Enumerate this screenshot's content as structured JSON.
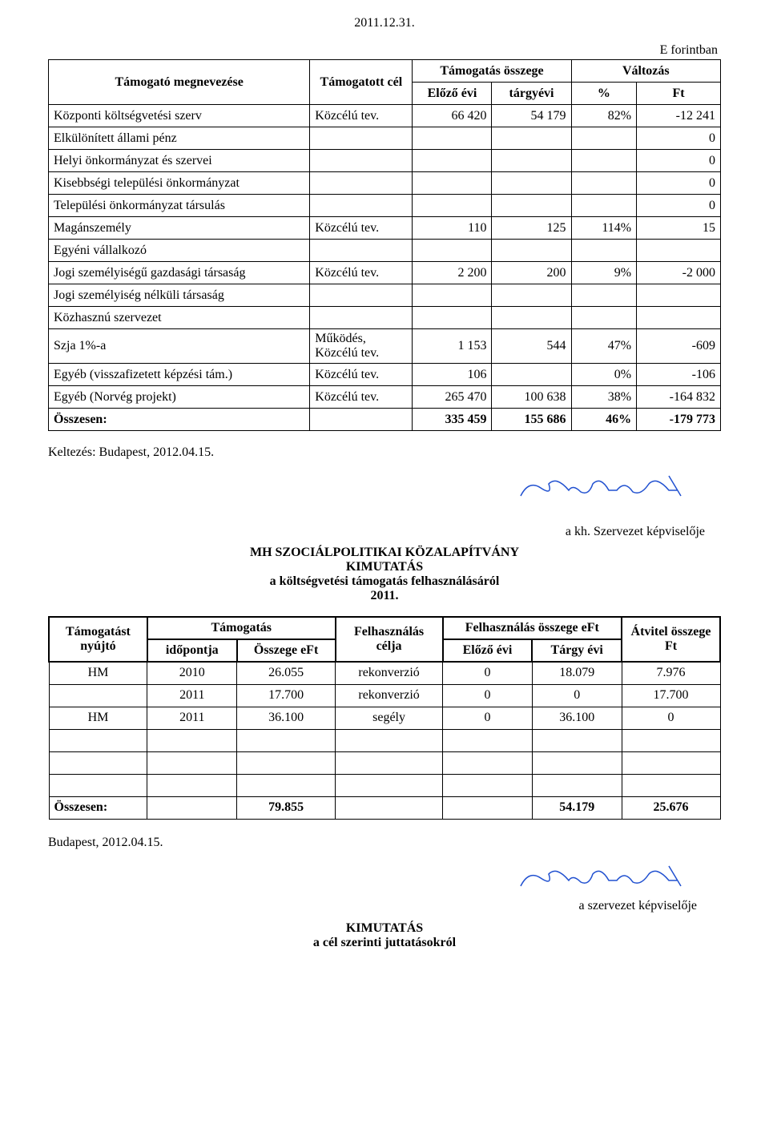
{
  "date_top": "2011.12.31.",
  "currency_label": "E forintban",
  "table1": {
    "headers": {
      "supporter": "Támogató megnevezése",
      "goal": "Támogatott cél",
      "amount": "Támogatás összege",
      "change": "Változás",
      "prev": "Előző évi",
      "curr": "tárgyévi",
      "pct": "%",
      "ft": "Ft"
    },
    "rows": [
      {
        "name": "Központi költségvetési szerv",
        "goal": "Közcélú tev.",
        "prev": "66 420",
        "curr": "54 179",
        "pct": "82%",
        "ft": "-12 241"
      },
      {
        "name": "Elkülönített állami pénz",
        "goal": "",
        "prev": "",
        "curr": "",
        "pct": "",
        "ft": "0"
      },
      {
        "name": "Helyi önkormányzat és szervei",
        "goal": "",
        "prev": "",
        "curr": "",
        "pct": "",
        "ft": "0"
      },
      {
        "name": "Kisebbségi települési önkormányzat",
        "goal": "",
        "prev": "",
        "curr": "",
        "pct": "",
        "ft": "0"
      },
      {
        "name": "Települési önkormányzat társulás",
        "goal": "",
        "prev": "",
        "curr": "",
        "pct": "",
        "ft": "0"
      },
      {
        "name": "Magánszemély",
        "goal": "Közcélú tev.",
        "prev": "110",
        "curr": "125",
        "pct": "114%",
        "ft": "15"
      },
      {
        "name": "Egyéni vállalkozó",
        "goal": "",
        "prev": "",
        "curr": "",
        "pct": "",
        "ft": ""
      },
      {
        "name": "Jogi személyiségű gazdasági társaság",
        "goal": "Közcélú tev.",
        "prev": "2 200",
        "curr": "200",
        "pct": "9%",
        "ft": "-2 000"
      },
      {
        "name": "Jogi személyiség nélküli társaság",
        "goal": "",
        "prev": "",
        "curr": "",
        "pct": "",
        "ft": ""
      },
      {
        "name": "Közhasznú szervezet",
        "goal": "",
        "prev": "",
        "curr": "",
        "pct": "",
        "ft": ""
      },
      {
        "name": "Szja 1%-a",
        "goal": "Működés, Közcélú tev.",
        "prev": "1 153",
        "curr": "544",
        "pct": "47%",
        "ft": "-609"
      },
      {
        "name": "Egyéb (visszafizetett képzési tám.)",
        "goal": "Közcélú tev.",
        "prev": "106",
        "curr": "",
        "pct": "0%",
        "ft": "-106"
      },
      {
        "name": "Egyéb (Norvég projekt)",
        "goal": "Közcélú tev.",
        "prev": "265 470",
        "curr": "100 638",
        "pct": "38%",
        "ft": "-164 832"
      }
    ],
    "total": {
      "name": "Összesen:",
      "prev": "335 459",
      "curr": "155 686",
      "pct": "46%",
      "ft": "-179 773"
    }
  },
  "dating1": "Keltezés: Budapest, 2012.04.15.",
  "sig1_caption": "a kh. Szervezet képviselője",
  "heading2": {
    "line1": "MH SZOCIÁLPOLITIKAI KÖZALAPÍTVÁNY",
    "line2": "KIMUTATÁS",
    "line3": "a költségvetési támogatás felhasználásáról",
    "line4": "2011."
  },
  "table2": {
    "headers": {
      "provider": "Támogatást nyújtó",
      "support": "Támogatás",
      "time": "időpontja",
      "amount": "Összege eFt",
      "purpose": "Felhasználás célja",
      "usage_amount": "Felhasználás összege eFt",
      "prev": "Előző évi",
      "curr": "Tárgy évi",
      "transfer": "Átvitel összege Ft"
    },
    "rows": [
      {
        "provider": "HM",
        "time": "2010",
        "amount": "26.055",
        "purpose": "rekonverzió",
        "prev": "0",
        "curr": "18.079",
        "transfer": "7.976"
      },
      {
        "provider": "",
        "time": "2011",
        "amount": "17.700",
        "purpose": "rekonverzió",
        "prev": "0",
        "curr": "0",
        "transfer": "17.700"
      },
      {
        "provider": "HM",
        "time": "2011",
        "amount": "36.100",
        "purpose": "segély",
        "prev": "0",
        "curr": "36.100",
        "transfer": "0"
      },
      {
        "provider": "",
        "time": "",
        "amount": "",
        "purpose": "",
        "prev": "",
        "curr": "",
        "transfer": ""
      },
      {
        "provider": "",
        "time": "",
        "amount": "",
        "purpose": "",
        "prev": "",
        "curr": "",
        "transfer": ""
      },
      {
        "provider": "",
        "time": "",
        "amount": "",
        "purpose": "",
        "prev": "",
        "curr": "",
        "transfer": ""
      }
    ],
    "total": {
      "label": "Összesen:",
      "amount": "79.855",
      "curr": "54.179",
      "transfer": "25.676"
    }
  },
  "dating2": "Budapest, 2012.04.15.",
  "sig2_caption": "a szervezet képviselője",
  "bottom_heading": {
    "line1": "KIMUTATÁS",
    "line2": "a cél szerinti juttatásokról"
  },
  "colors": {
    "text": "#000000",
    "background": "#ffffff",
    "border": "#000000",
    "signature": "#2050d0"
  }
}
